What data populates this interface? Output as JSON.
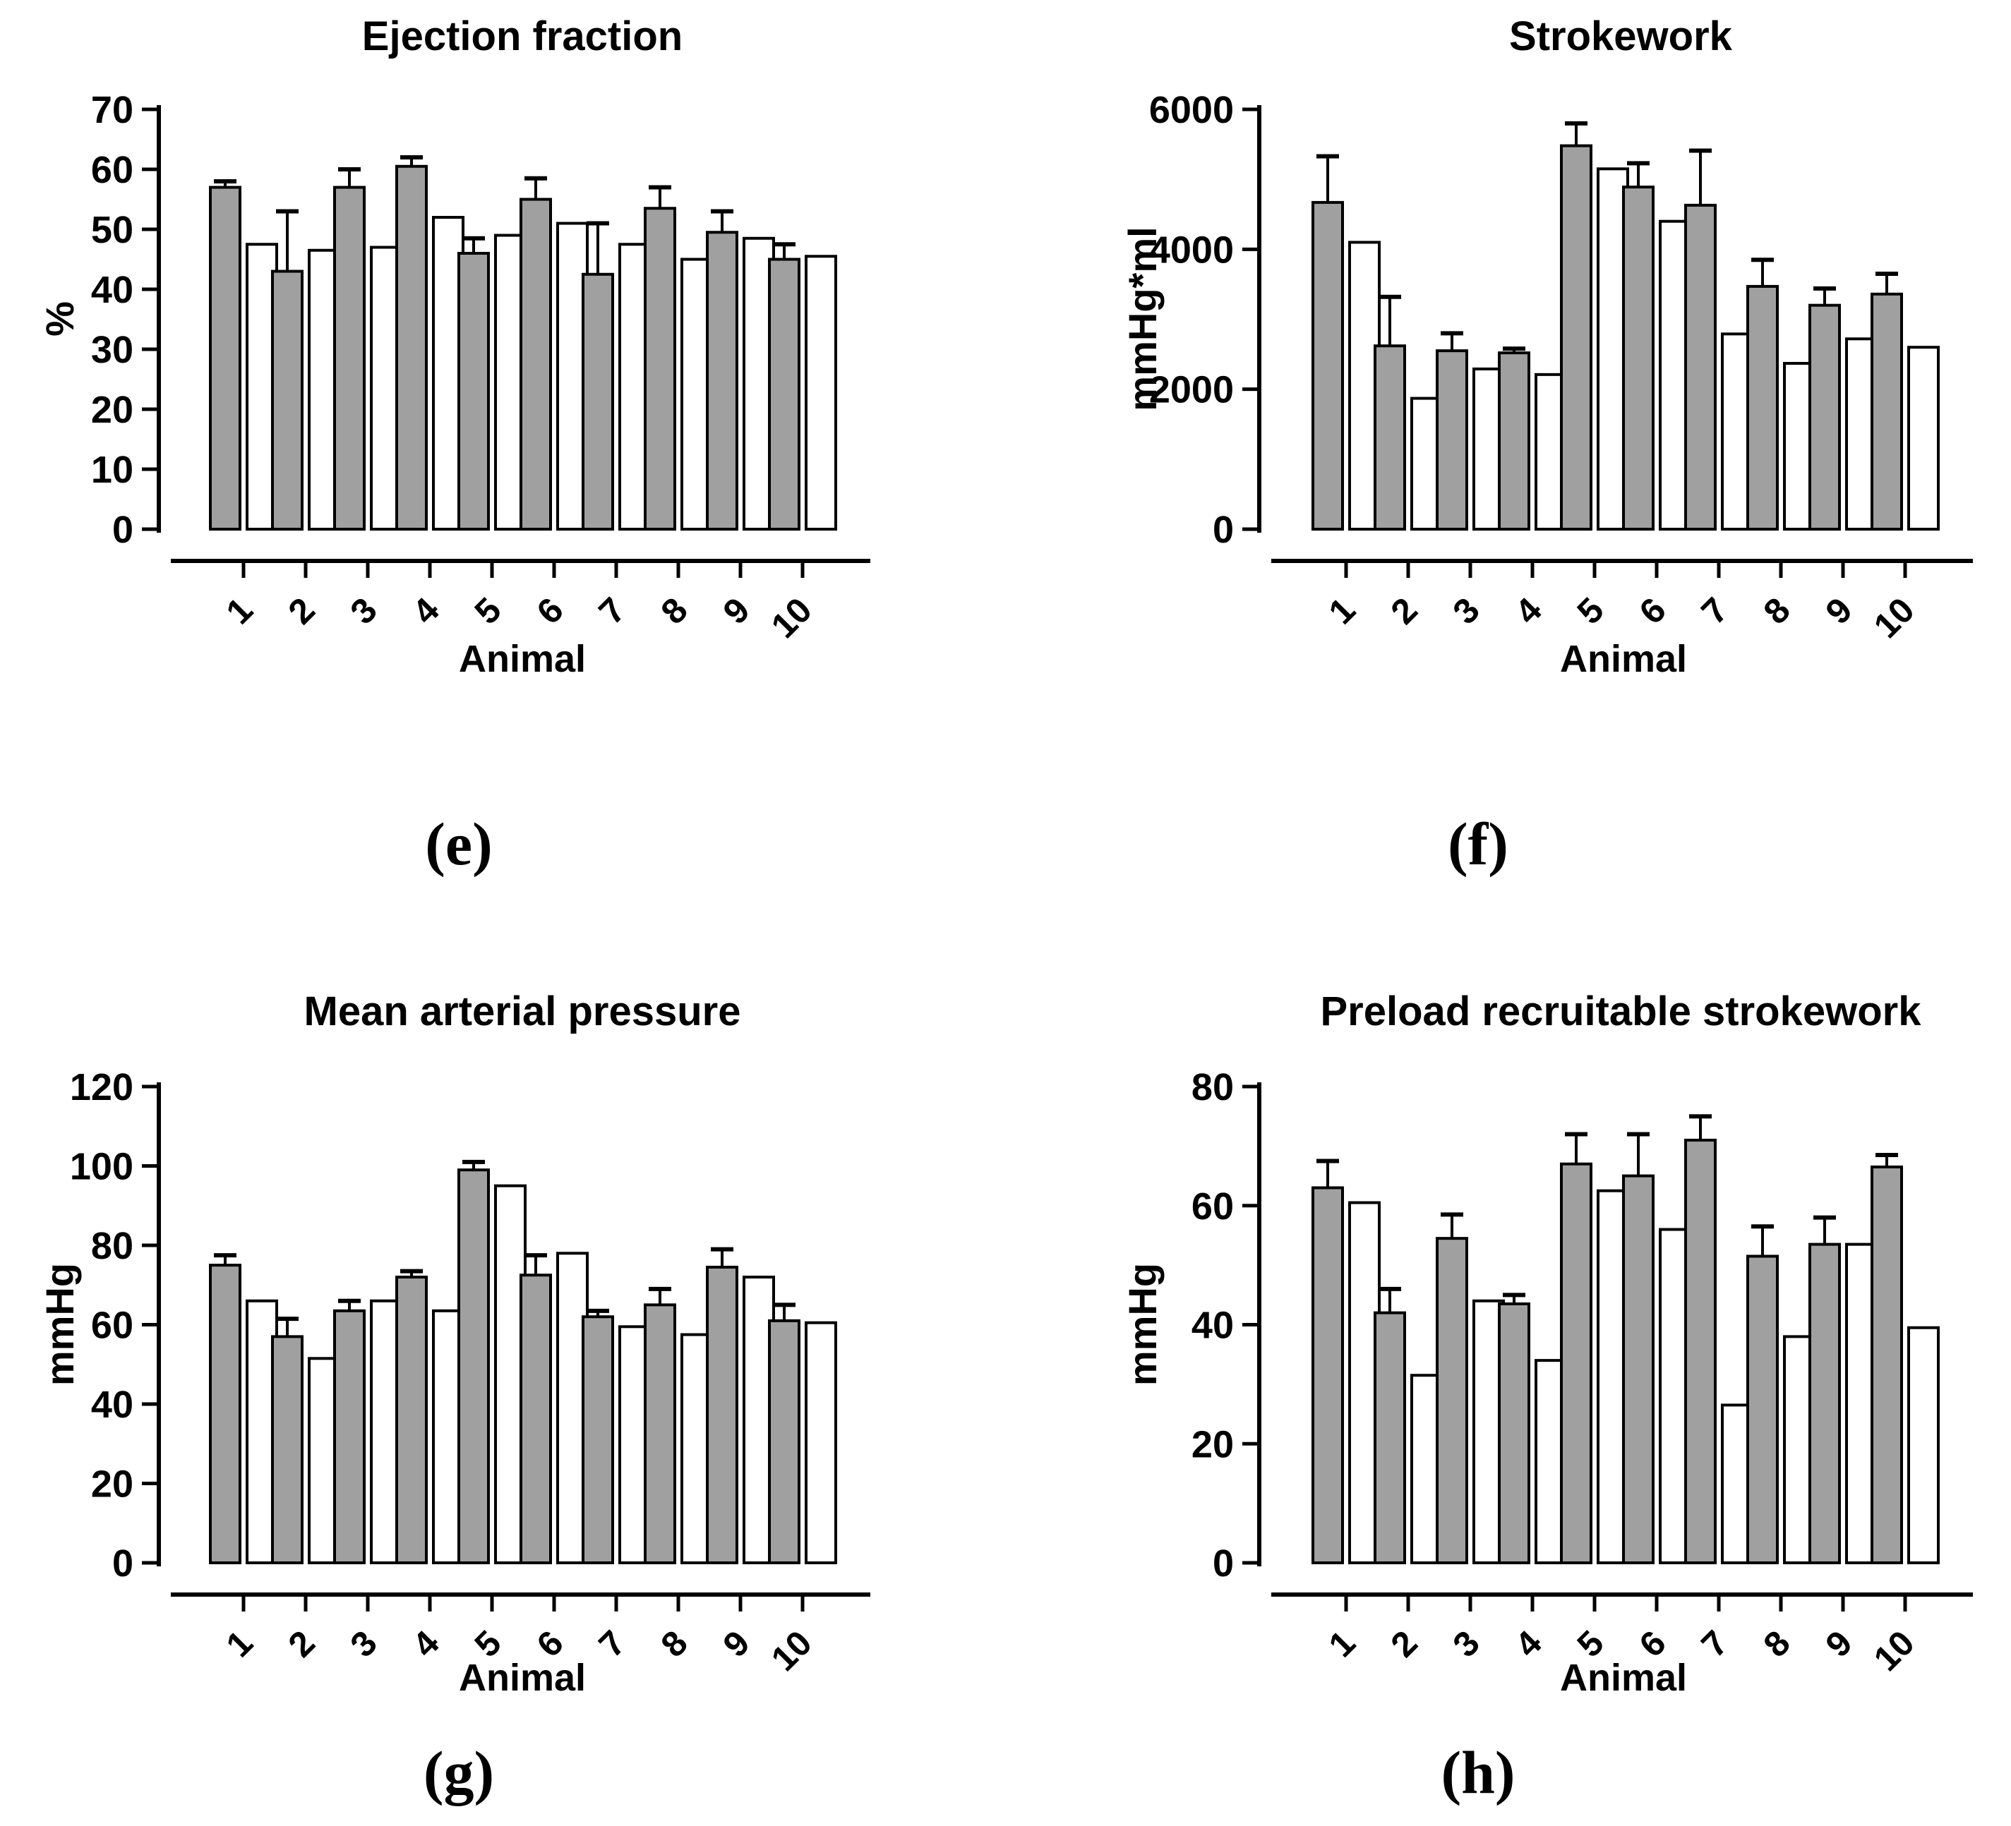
{
  "figure_type": "four-panel bar chart figure",
  "colors": {
    "filled_bar_fill": "#a0a0a0",
    "open_bar_fill": "#ffffff",
    "outline": "#000000",
    "background": "#ffffff"
  },
  "chart_data": [
    {
      "type": "bar",
      "panel_letter": "(e)",
      "title": "Ejection fraction",
      "xlabel": "Animal",
      "ylabel": "%",
      "ylim": [
        0,
        70
      ],
      "yticks": [
        0,
        10,
        20,
        30,
        40,
        50,
        60,
        70
      ],
      "categories": [
        "1",
        "2",
        "3",
        "4",
        "5",
        "6",
        "7",
        "8",
        "9",
        "10"
      ],
      "grid": false,
      "legend": "none",
      "series": [
        {
          "name": "filled-gray",
          "values": [
            57,
            43,
            57,
            60.5,
            46,
            55,
            42.5,
            53.5,
            49.5,
            45
          ],
          "errors_plus": [
            1,
            10,
            3,
            1.5,
            2.5,
            3.5,
            8.5,
            3.5,
            3.5,
            2.5
          ]
        },
        {
          "name": "open-white",
          "values": [
            47.5,
            46.5,
            47,
            52,
            49,
            51,
            47.5,
            45,
            48.5,
            45.5
          ],
          "errors_plus": [
            0,
            0,
            0,
            0,
            0,
            0,
            0,
            0,
            0,
            0
          ]
        }
      ]
    },
    {
      "type": "bar",
      "panel_letter": "(f)",
      "title": "Strokework",
      "xlabel": "Animal",
      "ylabel": "mmHg*ml",
      "ylim": [
        0,
        6000
      ],
      "yticks": [
        0,
        2000,
        4000,
        6000
      ],
      "categories": [
        "1",
        "2",
        "3",
        "4",
        "5",
        "6",
        "7",
        "8",
        "9",
        "10"
      ],
      "grid": false,
      "legend": "none",
      "series": [
        {
          "name": "filled-gray",
          "values": [
            4670,
            2620,
            2550,
            2520,
            5480,
            4890,
            4630,
            3470,
            3200,
            3360
          ],
          "errors_plus": [
            660,
            700,
            250,
            60,
            320,
            340,
            780,
            380,
            240,
            290
          ]
        },
        {
          "name": "open-white",
          "values": [
            4100,
            1870,
            2290,
            2210,
            5150,
            4400,
            2790,
            2370,
            2720,
            2600
          ],
          "errors_plus": [
            0,
            0,
            0,
            0,
            0,
            0,
            0,
            0,
            0,
            0
          ]
        }
      ]
    },
    {
      "type": "bar",
      "panel_letter": "(g)",
      "title": "Mean arterial pressure",
      "xlabel": "Animal",
      "ylabel": "mmHg",
      "ylim": [
        0,
        120
      ],
      "yticks": [
        0,
        20,
        40,
        60,
        80,
        100,
        120
      ],
      "categories": [
        "1",
        "2",
        "3",
        "4",
        "5",
        "6",
        "7",
        "8",
        "9",
        "10"
      ],
      "grid": false,
      "legend": "none",
      "series": [
        {
          "name": "filled-gray",
          "values": [
            75,
            57,
            63.5,
            72,
            99,
            72.5,
            62,
            65,
            74.5,
            61
          ],
          "errors_plus": [
            2.5,
            4.5,
            2.5,
            1.5,
            2,
            5,
            1.5,
            4,
            4.5,
            4
          ]
        },
        {
          "name": "open-white",
          "values": [
            66,
            51.5,
            66,
            63.5,
            95,
            78,
            59.5,
            57.5,
            72,
            60.5
          ],
          "errors_plus": [
            0,
            0,
            0,
            0,
            0,
            0,
            0,
            0,
            0,
            0
          ]
        }
      ]
    },
    {
      "type": "bar",
      "panel_letter": "(h)",
      "title": "Preload recruitable strokework",
      "xlabel": "Animal",
      "ylabel": "mmHg",
      "ylim": [
        0,
        80
      ],
      "yticks": [
        0,
        20,
        40,
        60,
        80
      ],
      "categories": [
        "1",
        "2",
        "3",
        "4",
        "5",
        "6",
        "7",
        "8",
        "9",
        "10"
      ],
      "grid": false,
      "legend": "none",
      "series": [
        {
          "name": "filled-gray",
          "values": [
            63,
            42,
            54.5,
            43.5,
            67,
            65,
            71,
            51.5,
            53.5,
            66.5
          ],
          "errors_plus": [
            4.5,
            4,
            4,
            1.5,
            5,
            7,
            4,
            5,
            4.5,
            2
          ]
        },
        {
          "name": "open-white",
          "values": [
            60.5,
            31.5,
            44,
            34,
            62.5,
            56,
            26.5,
            38,
            53.5,
            39.5
          ],
          "errors_plus": [
            0,
            0,
            0,
            0,
            0,
            0,
            0,
            0,
            0,
            0
          ]
        }
      ]
    }
  ]
}
